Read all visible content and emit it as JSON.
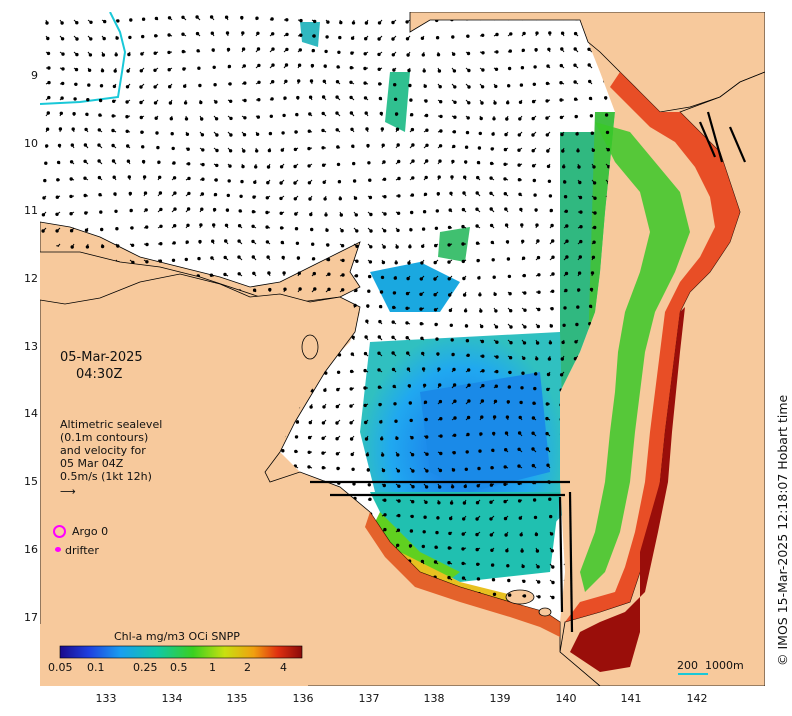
{
  "datetime": {
    "date": "05-Mar-2025",
    "time": "04:30Z"
  },
  "legend_text": {
    "line1": "Altimetric sealevel",
    "line2": "(0.1m contours)",
    "line3": "and velocity for",
    "line4": "05 Mar 04Z",
    "line5": "0.5m/s (1kt 12h)"
  },
  "markers": {
    "argo": "Argo 0",
    "drifter": "drifter",
    "argo_color": "#ff00ff",
    "drifter_color": "#ff00ff"
  },
  "colorbar": {
    "title": "Chl-a mg/m3 OCi SNPP",
    "ticks": [
      "0.05",
      "0.1",
      "0.25",
      "0.5",
      "1",
      "2",
      "4"
    ],
    "scale": "log"
  },
  "scalebar": {
    "label": "200  1000m"
  },
  "credit": "© IMOS 15-Mar-2025 12:18:07 Hobart time",
  "axes": {
    "lon_ticks": [
      "133",
      "134",
      "135",
      "136",
      "137",
      "138",
      "139",
      "140",
      "141",
      "142"
    ],
    "lat_ticks": [
      "9",
      "10",
      "11",
      "12",
      "13",
      "14",
      "15",
      "16",
      "17"
    ],
    "lon_range": [
      132.0,
      143.0
    ],
    "lat_range": [
      -17.8,
      -8.0
    ]
  },
  "colors": {
    "land": "#f7c99c",
    "coast": "#000000",
    "river": "#19c8d8"
  }
}
